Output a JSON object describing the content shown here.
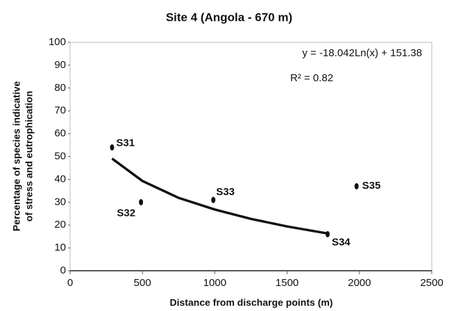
{
  "chart_data": {
    "type": "scatter",
    "title": "Site 4 (Angola - 670 m)",
    "xlabel": "Distance from discharge points (m)",
    "ylabel": [
      "Percentage of species indicative",
      "of stress and eutrophication"
    ],
    "annotations": [
      "y = -18.042Ln(x) + 151.38",
      "R² = 0.82"
    ],
    "points": {
      "labels": [
        "S31",
        "S32",
        "S33",
        "S34",
        "S35"
      ],
      "x": [
        290,
        490,
        990,
        1780,
        1980
      ],
      "values": [
        54,
        30,
        31,
        16,
        37
      ],
      "color": "#111111"
    },
    "trendline": {
      "x": [
        290,
        500,
        750,
        1000,
        1250,
        1500,
        1790
      ],
      "values": [
        49.1,
        39.3,
        31.9,
        26.8,
        22.7,
        19.4,
        16.2
      ],
      "color": "#111111"
    },
    "xlim": [
      0,
      2500
    ],
    "xticks": [
      0,
      500,
      1000,
      1500,
      2000,
      2500
    ],
    "ylim": [
      0,
      100
    ],
    "yticks": [
      0,
      10,
      20,
      30,
      40,
      50,
      60,
      70,
      80,
      90,
      100
    ],
    "grid": false
  }
}
